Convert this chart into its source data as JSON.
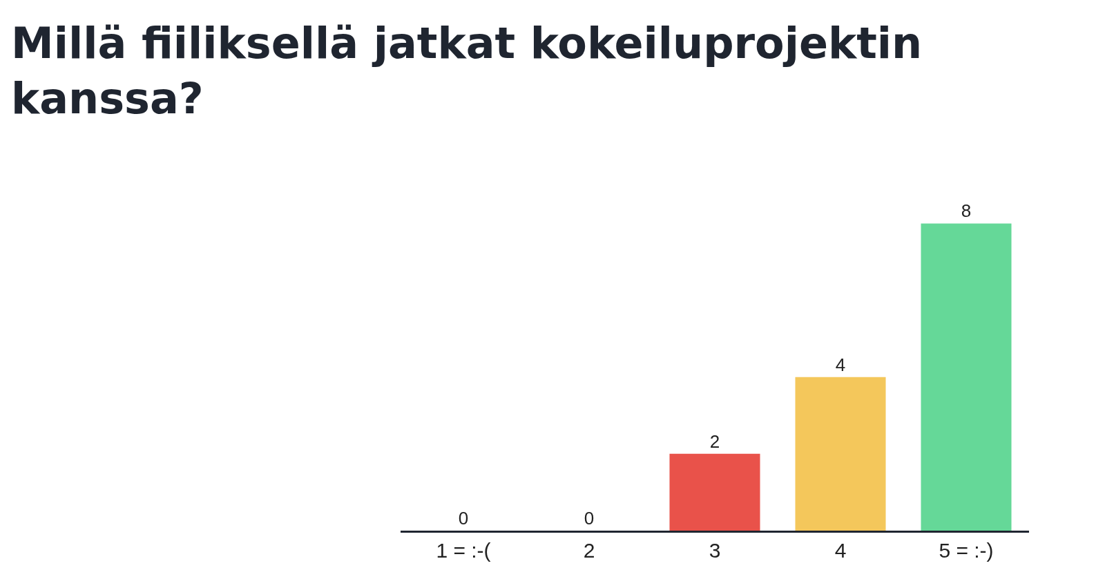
{
  "chart_data": {
    "type": "bar",
    "title": "Millä fiiliksellä jatkat kokeiluprojektin kanssa?",
    "categories": [
      "1 = :-(",
      "2",
      "3",
      "4",
      "5 = :-)"
    ],
    "values": [
      0,
      0,
      2,
      4,
      8
    ],
    "colors": [
      null,
      null,
      "#e9524a",
      "#f4c75b",
      "#65d898"
    ],
    "data_labels": true,
    "legend": false
  }
}
